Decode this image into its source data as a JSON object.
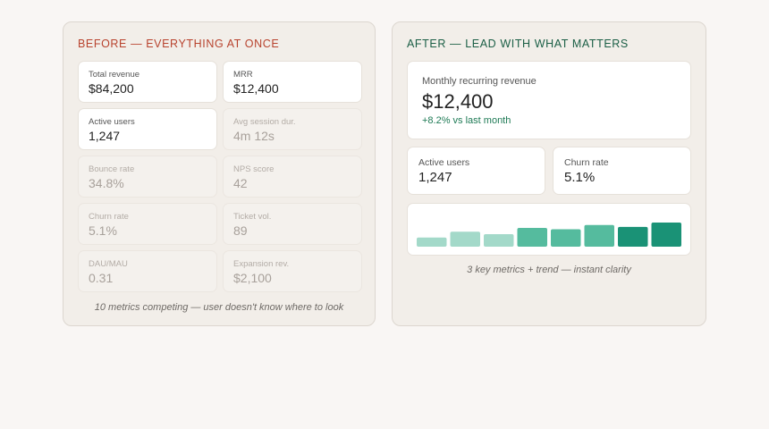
{
  "before": {
    "title": "BEFORE — EVERYTHING AT ONCE",
    "metrics": [
      {
        "label": "Total revenue",
        "value": "$84,200"
      },
      {
        "label": "MRR",
        "value": "$12,400"
      },
      {
        "label": "Active users",
        "value": "1,247"
      },
      {
        "label": "Avg session dur.",
        "value": "4m 12s"
      },
      {
        "label": "Bounce rate",
        "value": "34.8%"
      },
      {
        "label": "NPS score",
        "value": "42"
      },
      {
        "label": "Churn rate",
        "value": "5.1%"
      },
      {
        "label": "Ticket vol.",
        "value": "89"
      },
      {
        "label": "DAU/MAU",
        "value": "0.31"
      },
      {
        "label": "Expansion rev.",
        "value": "$2,100"
      }
    ],
    "caption": "10 metrics competing — user doesn't know where to look"
  },
  "after": {
    "title": "AFTER — LEAD WITH WHAT MATTERS",
    "hero": {
      "label": "Monthly recurring revenue",
      "value": "$12,400",
      "delta": "+8.2% vs last month"
    },
    "metrics": [
      {
        "label": "Active users",
        "value": "1,247"
      },
      {
        "label": "Churn rate",
        "value": "5.1%"
      }
    ],
    "caption": "3 key metrics + trend — instant clarity"
  },
  "chart_data": {
    "type": "bar",
    "values": [
      0.38,
      0.62,
      0.52,
      0.78,
      0.72,
      0.9,
      0.82,
      1.0
    ],
    "colors": [
      "#a3d9c9",
      "#a3d9c9",
      "#a3d9c9",
      "#55bb9e",
      "#55bb9e",
      "#55bb9e",
      "#1a9276",
      "#1a9276"
    ],
    "xlabel": "",
    "ylabel": ""
  }
}
